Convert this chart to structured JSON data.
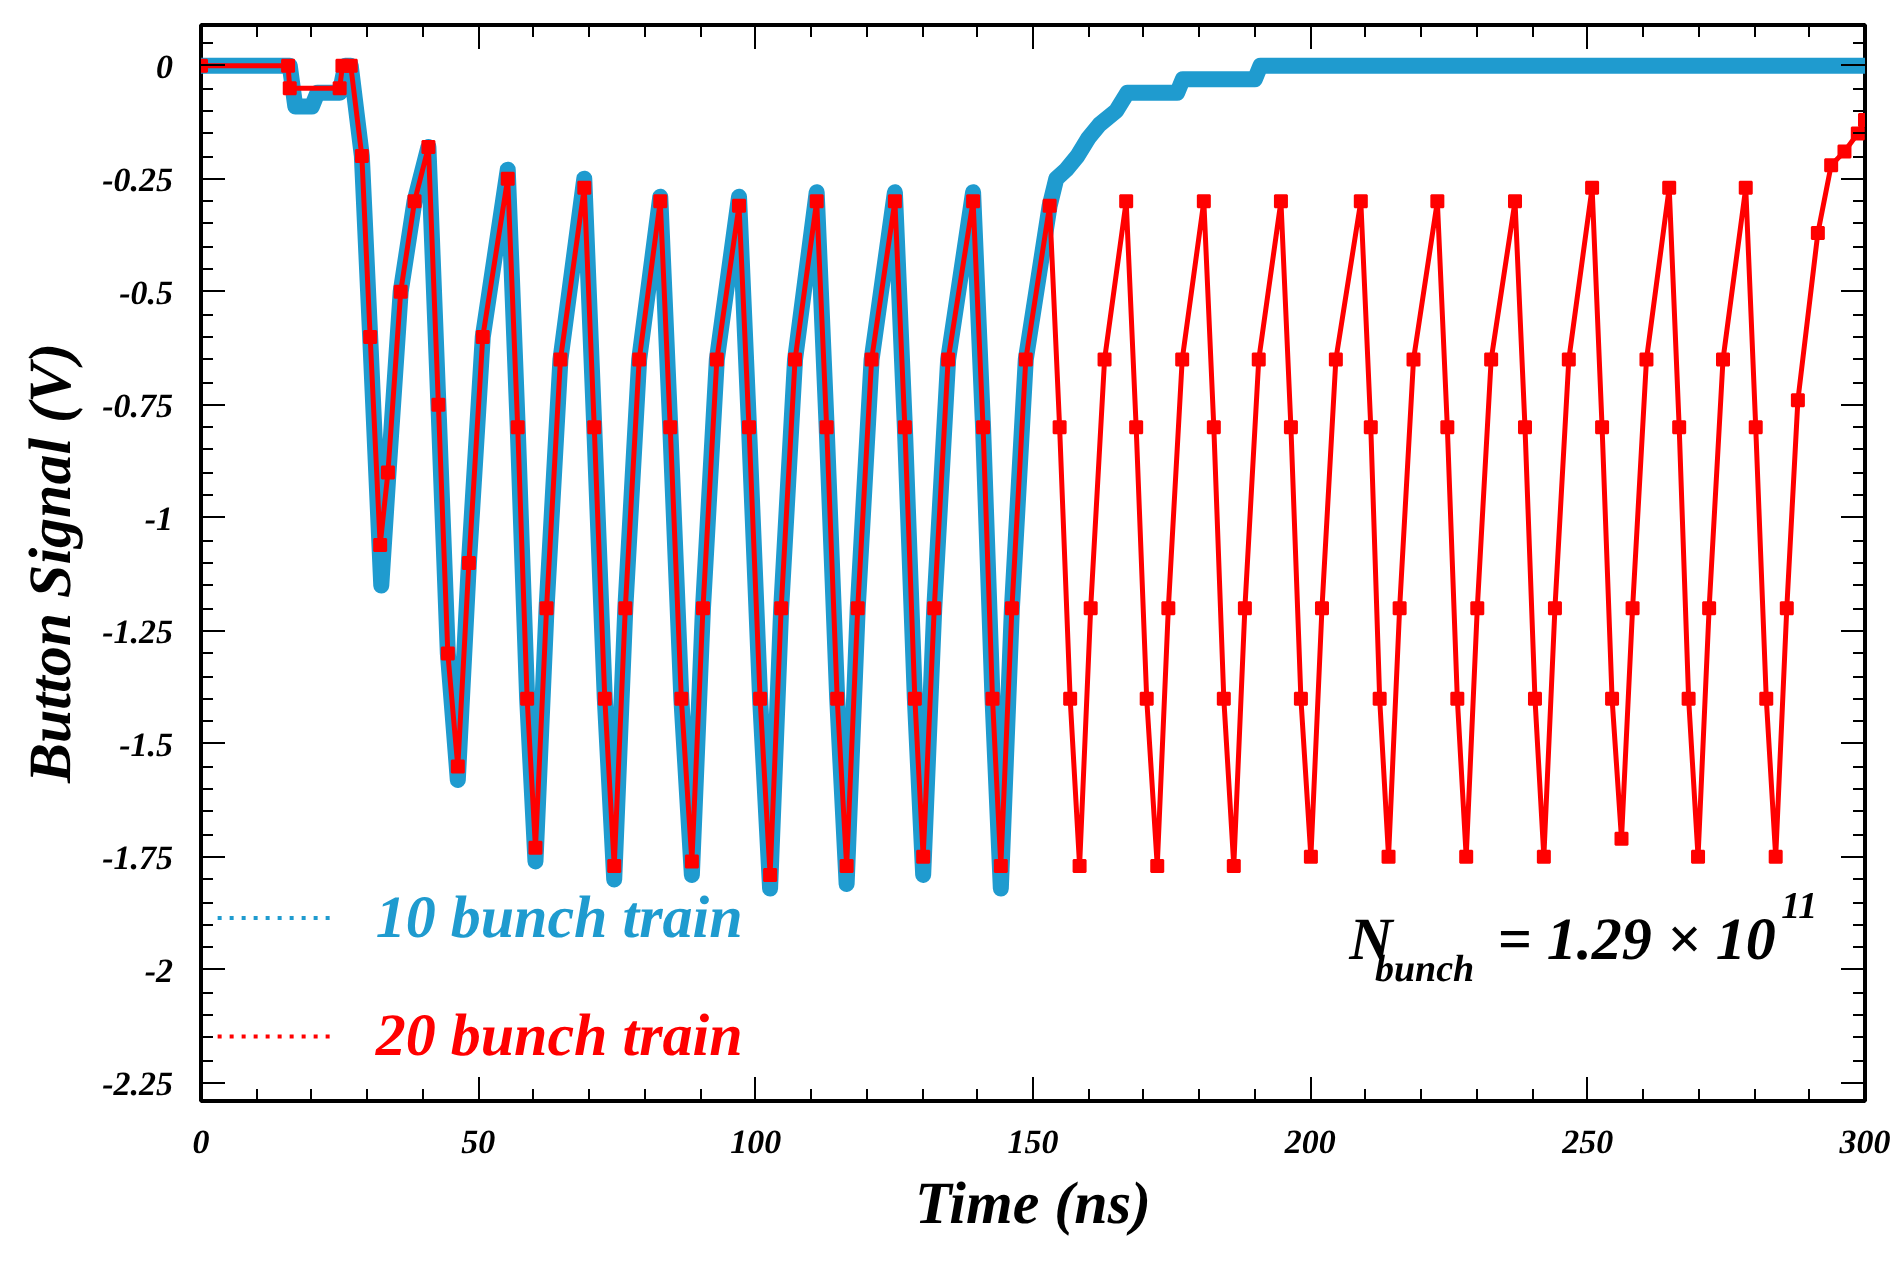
{
  "chart_data": {
    "type": "line",
    "xlabel": "Time (ns)",
    "ylabel": "Button Signal (V)",
    "xlim": [
      0,
      300
    ],
    "ylim": [
      -2.29,
      0.09
    ],
    "xticks": [
      0,
      50,
      100,
      150,
      200,
      250,
      300
    ],
    "yticks": [
      0,
      -0.25,
      -0.5,
      -0.75,
      -1,
      -1.25,
      -1.5,
      -1.75,
      -2,
      -2.25
    ],
    "grid": false,
    "legend": "bottom left",
    "annotations": [
      "N$_{bunch}$ = 1.29 × 10$^{11}$"
    ],
    "series": [
      {
        "name": "10 bunch train",
        "color": "#1f9bcf",
        "marker": "none",
        "x": [
          0,
          16,
          17,
          20,
          21,
          25,
          26,
          27,
          29,
          30.5,
          32.5,
          33.7,
          36,
          38.5,
          41,
          42.8,
          44.5,
          46.3,
          48.3,
          50.8,
          55.3,
          57.1,
          58.8,
          60.3,
          62.3,
          64.8,
          69.1,
          70.9,
          72.8,
          74.5,
          76.5,
          79,
          82.8,
          84.6,
          86.6,
          88.5,
          90.5,
          93,
          97,
          98.8,
          100.8,
          102.6,
          104.6,
          107.1,
          111,
          112.8,
          114.7,
          116.4,
          118.4,
          120.9,
          125.1,
          126.9,
          128.7,
          130.2,
          132.2,
          134.7,
          139.2,
          141,
          142.7,
          144.2,
          146.2,
          148.7,
          153,
          154.2,
          156,
          158,
          160,
          162,
          165,
          167,
          176,
          177,
          190,
          191,
          300
        ],
        "values": [
          0,
          0,
          -0.09,
          -0.09,
          -0.06,
          -0.06,
          0,
          0,
          -0.2,
          -0.6,
          -1.15,
          -0.92,
          -0.5,
          -0.3,
          -0.18,
          -0.75,
          -1.3,
          -1.58,
          -1.1,
          -0.6,
          -0.23,
          -0.8,
          -1.4,
          -1.76,
          -1.2,
          -0.65,
          -0.25,
          -0.8,
          -1.4,
          -1.8,
          -1.2,
          -0.65,
          -0.29,
          -0.8,
          -1.4,
          -1.79,
          -1.2,
          -0.65,
          -0.29,
          -0.8,
          -1.4,
          -1.82,
          -1.2,
          -0.65,
          -0.28,
          -0.8,
          -1.4,
          -1.81,
          -1.2,
          -0.65,
          -0.28,
          -0.8,
          -1.4,
          -1.79,
          -1.2,
          -0.65,
          -0.28,
          -0.8,
          -1.4,
          -1.82,
          -1.2,
          -0.65,
          -0.31,
          -0.25,
          -0.23,
          -0.2,
          -0.16,
          -0.13,
          -0.1,
          -0.06,
          -0.06,
          -0.03,
          -0.03,
          0,
          0
        ]
      },
      {
        "name": "20 bunch train",
        "color": "#ff0000",
        "marker": "square",
        "x": [
          0,
          15.7,
          16,
          25,
          25.5,
          27,
          29,
          30.5,
          32.3,
          33.7,
          36,
          38.5,
          41,
          42.8,
          44.5,
          46.3,
          48.3,
          50.8,
          55.3,
          57.1,
          58.8,
          60.3,
          62.3,
          64.8,
          69.1,
          70.9,
          72.8,
          74.5,
          76.5,
          79,
          82.8,
          84.6,
          86.6,
          88.5,
          90.5,
          93,
          97,
          98.8,
          100.8,
          102.6,
          104.6,
          107.1,
          111,
          112.8,
          114.7,
          116.4,
          118.4,
          120.9,
          125.1,
          126.9,
          128.7,
          130.2,
          132.2,
          134.7,
          139.2,
          141,
          142.7,
          144.2,
          146.2,
          148.7,
          153,
          154.8,
          156.7,
          158.4,
          160.4,
          162.9,
          166.8,
          168.6,
          170.5,
          172.4,
          174.4,
          176.9,
          180.8,
          182.6,
          184.4,
          186.2,
          188.2,
          190.7,
          194.7,
          196.5,
          198.3,
          200.1,
          202.1,
          204.6,
          209.1,
          210.9,
          212.5,
          214.1,
          216.1,
          218.6,
          222.9,
          224.7,
          226.5,
          228.1,
          230.1,
          232.6,
          236.9,
          238.7,
          240.5,
          242.1,
          244.1,
          246.6,
          250.8,
          252.6,
          254.4,
          256.1,
          258.1,
          260.6,
          264.7,
          266.5,
          268.2,
          269.9,
          271.9,
          274.4,
          278.5,
          280.3,
          282.2,
          283.9,
          285.9,
          287.9,
          291.5,
          293.9,
          296.3,
          298.7,
          300
        ],
        "values": [
          0,
          0,
          -0.05,
          -0.05,
          0,
          0,
          -0.2,
          -0.6,
          -1.06,
          -0.9,
          -0.5,
          -0.3,
          -0.18,
          -0.75,
          -1.3,
          -1.55,
          -1.1,
          -0.6,
          -0.25,
          -0.8,
          -1.4,
          -1.73,
          -1.2,
          -0.65,
          -0.27,
          -0.8,
          -1.4,
          -1.77,
          -1.2,
          -0.65,
          -0.3,
          -0.8,
          -1.4,
          -1.76,
          -1.2,
          -0.65,
          -0.31,
          -0.8,
          -1.4,
          -1.79,
          -1.2,
          -0.65,
          -0.3,
          -0.8,
          -1.4,
          -1.77,
          -1.2,
          -0.65,
          -0.3,
          -0.8,
          -1.4,
          -1.75,
          -1.2,
          -0.65,
          -0.3,
          -0.8,
          -1.4,
          -1.77,
          -1.2,
          -0.65,
          -0.31,
          -0.8,
          -1.4,
          -1.77,
          -1.2,
          -0.65,
          -0.3,
          -0.8,
          -1.4,
          -1.77,
          -1.2,
          -0.65,
          -0.3,
          -0.8,
          -1.4,
          -1.77,
          -1.2,
          -0.65,
          -0.3,
          -0.8,
          -1.4,
          -1.75,
          -1.2,
          -0.65,
          -0.3,
          -0.8,
          -1.4,
          -1.75,
          -1.2,
          -0.65,
          -0.3,
          -0.8,
          -1.4,
          -1.75,
          -1.2,
          -0.65,
          -0.3,
          -0.8,
          -1.4,
          -1.75,
          -1.2,
          -0.65,
          -0.27,
          -0.8,
          -1.4,
          -1.71,
          -1.2,
          -0.65,
          -0.27,
          -0.8,
          -1.4,
          -1.75,
          -1.2,
          -0.65,
          -0.27,
          -0.8,
          -1.4,
          -1.75,
          -1.2,
          -0.74,
          -0.37,
          -0.22,
          -0.19,
          -0.15,
          -0.12
        ]
      }
    ]
  }
}
